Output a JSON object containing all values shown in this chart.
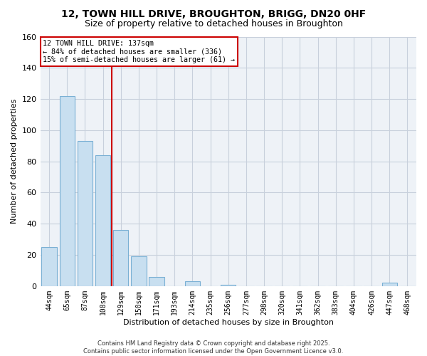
{
  "title": "12, TOWN HILL DRIVE, BROUGHTON, BRIGG, DN20 0HF",
  "subtitle": "Size of property relative to detached houses in Broughton",
  "xlabel": "Distribution of detached houses by size in Broughton",
  "ylabel": "Number of detached properties",
  "categories": [
    "44sqm",
    "65sqm",
    "87sqm",
    "108sqm",
    "129sqm",
    "150sqm",
    "171sqm",
    "193sqm",
    "214sqm",
    "235sqm",
    "256sqm",
    "277sqm",
    "298sqm",
    "320sqm",
    "341sqm",
    "362sqm",
    "383sqm",
    "404sqm",
    "426sqm",
    "447sqm",
    "468sqm"
  ],
  "values": [
    25,
    122,
    93,
    84,
    36,
    19,
    6,
    0,
    3,
    0,
    1,
    0,
    0,
    0,
    0,
    0,
    0,
    0,
    0,
    2,
    0
  ],
  "bar_color": "#c8dff0",
  "bar_edge_color": "#7ab0d4",
  "vline_color": "#cc0000",
  "vline_index": 3.5,
  "ylim": [
    0,
    160
  ],
  "yticks": [
    0,
    20,
    40,
    60,
    80,
    100,
    120,
    140,
    160
  ],
  "annotation_text_line1": "12 TOWN HILL DRIVE: 137sqm",
  "annotation_text_line2": "← 84% of detached houses are smaller (336)",
  "annotation_text_line3": "15% of semi-detached houses are larger (61) →",
  "ann_box_color": "#cc0000",
  "footer_line1": "Contains HM Land Registry data © Crown copyright and database right 2025.",
  "footer_line2": "Contains public sector information licensed under the Open Government Licence v3.0.",
  "bg_color": "#ffffff",
  "plot_bg_color": "#eef2f7",
  "grid_color": "#c8d0dc",
  "title_fontsize": 10,
  "subtitle_fontsize": 9,
  "axis_label_fontsize": 8,
  "tick_fontsize": 7,
  "footer_fontsize": 6
}
